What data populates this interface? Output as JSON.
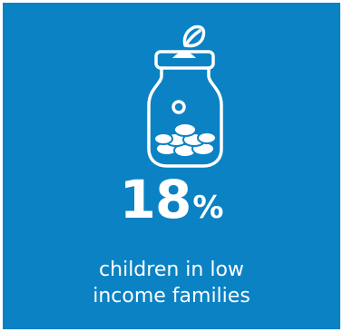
{
  "infographic": {
    "icon": "coin-jar-icon",
    "background_color": "#0a82c4",
    "text_color": "#ffffff",
    "stat_value": "18",
    "stat_unit": "%",
    "caption_line1": "children in low",
    "caption_line2": "income families"
  }
}
